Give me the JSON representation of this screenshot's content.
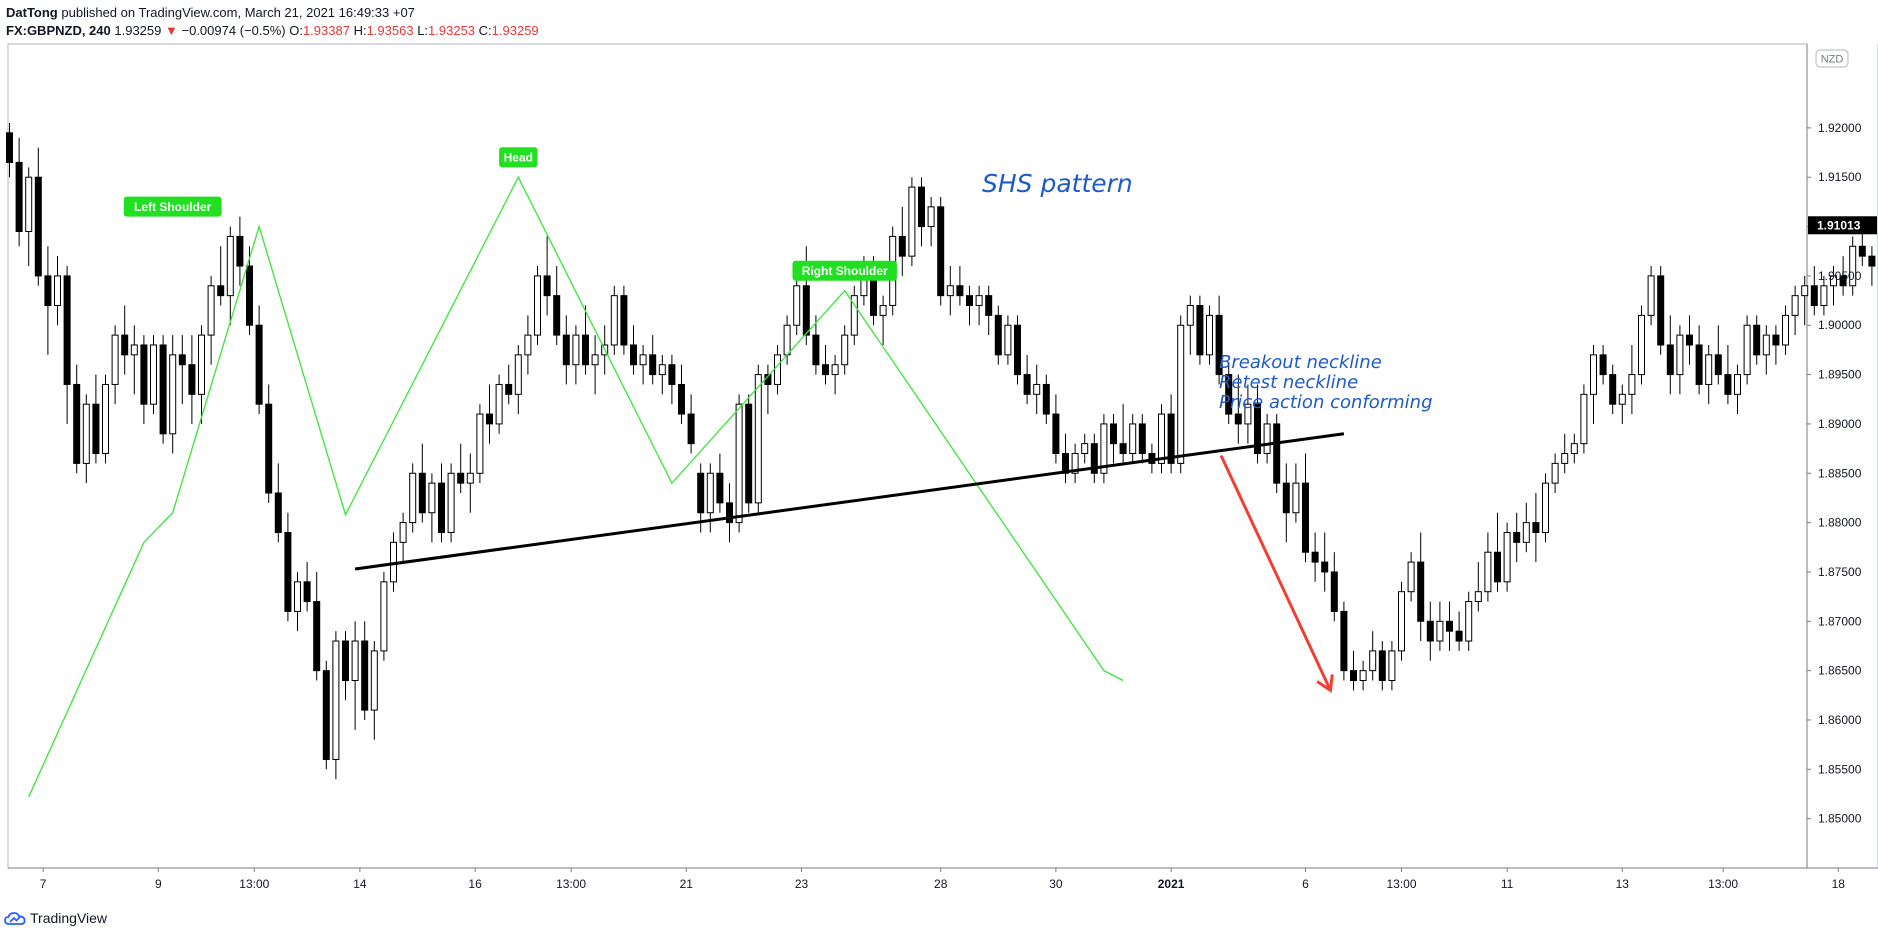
{
  "header": {
    "author": "DatTong",
    "published_text": "published on TradingView.com, March 21, 2021 16:49:33 +07",
    "symbol": "FX:GBPNZD, 240",
    "last_price": "1.93259",
    "change_arrow": "▼",
    "change": "−0.00974 (−0.5%)",
    "o_label": "O:",
    "o_value": "1.93387",
    "h_label": "H:",
    "h_value": "1.93563",
    "l_label": "L:",
    "l_value": "1.93253",
    "c_label": "C:",
    "c_value": "1.93259"
  },
  "colors": {
    "candle_up": "#ffffff",
    "candle_down": "#000000",
    "zigzag": "#39e639",
    "neckline": "#000000",
    "arrow": "#f23f36",
    "label_bg": "#21e021",
    "note_text": "#1e5bc6",
    "price_tag": "#000000"
  },
  "footer": {
    "logo_icon": "tradingview-cloud-icon",
    "label": "TradingView"
  },
  "chart_data": {
    "type": "candlestick",
    "currency_label": "NZD",
    "current_price_tag": "1.91013",
    "ylim": [
      1.845,
      1.9285
    ],
    "y_ticks": [
      "1.85000",
      "1.85500",
      "1.86000",
      "1.86500",
      "1.87000",
      "1.87500",
      "1.88000",
      "1.88500",
      "1.89000",
      "1.89500",
      "1.90000",
      "1.90500",
      "1.91000",
      "1.91500",
      "1.92000"
    ],
    "x_ticks": [
      {
        "label": "7",
        "bar": 3.5
      },
      {
        "label": "9",
        "bar": 15.5
      },
      {
        "label": "13:00",
        "bar": 25.5
      },
      {
        "label": "14",
        "bar": 36.5
      },
      {
        "label": "16",
        "bar": 48.5
      },
      {
        "label": "13:00",
        "bar": 58.5
      },
      {
        "label": "21",
        "bar": 70.5
      },
      {
        "label": "23",
        "bar": 82.5
      },
      {
        "label": "28",
        "bar": 97
      },
      {
        "label": "30",
        "bar": 109
      },
      {
        "label": "2021",
        "bar": 121,
        "bold": true
      },
      {
        "label": "6",
        "bar": 135
      },
      {
        "label": "13:00",
        "bar": 145
      },
      {
        "label": "11",
        "bar": 156
      },
      {
        "label": "13",
        "bar": 168
      },
      {
        "label": "13:00",
        "bar": 178.5
      },
      {
        "label": "18",
        "bar": 190.5
      }
    ],
    "candles": [
      [
        1.9195,
        1.9205,
        1.915,
        1.9165
      ],
      [
        1.9165,
        1.919,
        1.908,
        1.9095
      ],
      [
        1.9095,
        1.916,
        1.906,
        1.915
      ],
      [
        1.915,
        1.918,
        1.904,
        1.905
      ],
      [
        1.905,
        1.908,
        1.897,
        1.902
      ],
      [
        1.902,
        1.907,
        1.9,
        1.905
      ],
      [
        1.905,
        1.906,
        1.89,
        1.894
      ],
      [
        1.894,
        1.896,
        1.885,
        1.886
      ],
      [
        1.886,
        1.893,
        1.884,
        1.892
      ],
      [
        1.892,
        1.895,
        1.886,
        1.887
      ],
      [
        1.887,
        1.895,
        1.886,
        1.894
      ],
      [
        1.894,
        1.9,
        1.892,
        1.899
      ],
      [
        1.899,
        1.902,
        1.895,
        1.897
      ],
      [
        1.897,
        1.9,
        1.893,
        1.898
      ],
      [
        1.898,
        1.899,
        1.89,
        1.892
      ],
      [
        1.892,
        1.899,
        1.891,
        1.898
      ],
      [
        1.898,
        1.899,
        1.888,
        1.889
      ],
      [
        1.889,
        1.899,
        1.887,
        1.897
      ],
      [
        1.897,
        1.899,
        1.892,
        1.896
      ],
      [
        1.896,
        1.899,
        1.89,
        1.893
      ],
      [
        1.893,
        1.9,
        1.89,
        1.899
      ],
      [
        1.899,
        1.905,
        1.896,
        1.904
      ],
      [
        1.904,
        1.908,
        1.902,
        1.903
      ],
      [
        1.903,
        1.91,
        1.9,
        1.909
      ],
      [
        1.909,
        1.911,
        1.904,
        1.906
      ],
      [
        1.906,
        1.908,
        1.899,
        1.9
      ],
      [
        1.9,
        1.902,
        1.891,
        1.892
      ],
      [
        1.892,
        1.894,
        1.882,
        1.883
      ],
      [
        1.883,
        1.886,
        1.878,
        1.879
      ],
      [
        1.879,
        1.881,
        1.87,
        1.871
      ],
      [
        1.871,
        1.875,
        1.869,
        1.874
      ],
      [
        1.874,
        1.876,
        1.871,
        1.872
      ],
      [
        1.872,
        1.875,
        1.864,
        1.865
      ],
      [
        1.865,
        1.866,
        1.855,
        1.856
      ],
      [
        1.856,
        1.869,
        1.854,
        1.868
      ],
      [
        1.868,
        1.869,
        1.862,
        1.864
      ],
      [
        1.864,
        1.87,
        1.859,
        1.868
      ],
      [
        1.868,
        1.87,
        1.86,
        1.861
      ],
      [
        1.861,
        1.868,
        1.858,
        1.867
      ],
      [
        1.867,
        1.875,
        1.866,
        1.874
      ],
      [
        1.874,
        1.879,
        1.873,
        1.878
      ],
      [
        1.878,
        1.881,
        1.876,
        1.88
      ],
      [
        1.88,
        1.886,
        1.879,
        1.885
      ],
      [
        1.885,
        1.888,
        1.88,
        1.881
      ],
      [
        1.881,
        1.885,
        1.878,
        1.884
      ],
      [
        1.884,
        1.886,
        1.878,
        1.879
      ],
      [
        1.879,
        1.886,
        1.878,
        1.885
      ],
      [
        1.885,
        1.888,
        1.883,
        1.884
      ],
      [
        1.884,
        1.887,
        1.881,
        1.885
      ],
      [
        1.885,
        1.892,
        1.884,
        1.891
      ],
      [
        1.891,
        1.894,
        1.888,
        1.89
      ],
      [
        1.89,
        1.895,
        1.889,
        1.894
      ],
      [
        1.894,
        1.896,
        1.892,
        1.893
      ],
      [
        1.893,
        1.898,
        1.891,
        1.897
      ],
      [
        1.897,
        1.901,
        1.895,
        1.899
      ],
      [
        1.899,
        1.906,
        1.898,
        1.905
      ],
      [
        1.905,
        1.909,
        1.901,
        1.903
      ],
      [
        1.903,
        1.906,
        1.898,
        1.899
      ],
      [
        1.899,
        1.901,
        1.894,
        1.896
      ],
      [
        1.896,
        1.9,
        1.894,
        1.899
      ],
      [
        1.899,
        1.902,
        1.895,
        1.896
      ],
      [
        1.896,
        1.899,
        1.893,
        1.897
      ],
      [
        1.897,
        1.9,
        1.895,
        1.898
      ],
      [
        1.898,
        1.904,
        1.897,
        1.903
      ],
      [
        1.903,
        1.904,
        1.897,
        1.898
      ],
      [
        1.898,
        1.9,
        1.895,
        1.896
      ],
      [
        1.896,
        1.898,
        1.894,
        1.897
      ],
      [
        1.897,
        1.899,
        1.894,
        1.895
      ],
      [
        1.895,
        1.897,
        1.893,
        1.896
      ],
      [
        1.896,
        1.897,
        1.892,
        1.894
      ],
      [
        1.894,
        1.896,
        1.89,
        1.891
      ],
      [
        1.891,
        1.893,
        1.887,
        1.888
      ],
      [
        1.885,
        1.886,
        1.879,
        1.881
      ],
      [
        1.881,
        1.886,
        1.879,
        1.885
      ],
      [
        1.885,
        1.887,
        1.881,
        1.882
      ],
      [
        1.882,
        1.884,
        1.878,
        1.88
      ],
      [
        1.88,
        1.893,
        1.879,
        1.892
      ],
      [
        1.892,
        1.893,
        1.881,
        1.882
      ],
      [
        1.882,
        1.896,
        1.881,
        1.895
      ],
      [
        1.895,
        1.896,
        1.891,
        1.894
      ],
      [
        1.894,
        1.898,
        1.893,
        1.897
      ],
      [
        1.897,
        1.901,
        1.896,
        1.9
      ],
      [
        1.9,
        1.905,
        1.899,
        1.904
      ],
      [
        1.904,
        1.908,
        1.898,
        1.899
      ],
      [
        1.899,
        1.901,
        1.895,
        1.896
      ],
      [
        1.896,
        1.898,
        1.894,
        1.895
      ],
      [
        1.895,
        1.897,
        1.893,
        1.896
      ],
      [
        1.896,
        1.9,
        1.895,
        1.899
      ],
      [
        1.899,
        1.904,
        1.898,
        1.903
      ],
      [
        1.903,
        1.907,
        1.902,
        1.906
      ],
      [
        1.906,
        1.907,
        1.9,
        1.901
      ],
      [
        1.901,
        1.903,
        1.898,
        1.902
      ],
      [
        1.902,
        1.91,
        1.901,
        1.909
      ],
      [
        1.909,
        1.912,
        1.905,
        1.907
      ],
      [
        1.907,
        1.915,
        1.906,
        1.914
      ],
      [
        1.914,
        1.915,
        1.908,
        1.91
      ],
      [
        1.91,
        1.913,
        1.908,
        1.912
      ],
      [
        1.912,
        1.913,
        1.902,
        1.903
      ],
      [
        1.903,
        1.906,
        1.901,
        1.904
      ],
      [
        1.904,
        1.906,
        1.902,
        1.903
      ],
      [
        1.903,
        1.904,
        1.9,
        1.902
      ],
      [
        1.902,
        1.904,
        1.9,
        1.903
      ],
      [
        1.903,
        1.904,
        1.899,
        1.901
      ],
      [
        1.901,
        1.902,
        1.896,
        1.897
      ],
      [
        1.897,
        1.901,
        1.896,
        1.9
      ],
      [
        1.9,
        1.901,
        1.894,
        1.895
      ],
      [
        1.895,
        1.897,
        1.892,
        1.893
      ],
      [
        1.893,
        1.896,
        1.891,
        1.894
      ],
      [
        1.894,
        1.895,
        1.89,
        1.891
      ],
      [
        1.891,
        1.893,
        1.886,
        1.887
      ],
      [
        1.887,
        1.889,
        1.884,
        1.885
      ],
      [
        1.885,
        1.888,
        1.884,
        1.887
      ],
      [
        1.887,
        1.889,
        1.886,
        1.888
      ],
      [
        1.888,
        1.889,
        1.884,
        1.885
      ],
      [
        1.885,
        1.891,
        1.884,
        1.89
      ],
      [
        1.89,
        1.891,
        1.886,
        1.888
      ],
      [
        1.888,
        1.892,
        1.886,
        1.887
      ],
      [
        1.887,
        1.891,
        1.886,
        1.89
      ],
      [
        1.89,
        1.891,
        1.886,
        1.887
      ],
      [
        1.887,
        1.888,
        1.885,
        1.886
      ],
      [
        1.886,
        1.892,
        1.885,
        1.891
      ],
      [
        1.891,
        1.893,
        1.885,
        1.886
      ],
      [
        1.886,
        1.901,
        1.885,
        1.9
      ],
      [
        1.9,
        1.903,
        1.897,
        1.902
      ],
      [
        1.902,
        1.903,
        1.896,
        1.897
      ],
      [
        1.897,
        1.902,
        1.896,
        1.901
      ],
      [
        1.901,
        1.903,
        1.894,
        1.895
      ],
      [
        1.895,
        1.896,
        1.89,
        1.891
      ],
      [
        1.891,
        1.895,
        1.888,
        1.89
      ],
      [
        1.89,
        1.894,
        1.888,
        1.892
      ],
      [
        1.892,
        1.894,
        1.886,
        1.887
      ],
      [
        1.887,
        1.891,
        1.886,
        1.89
      ],
      [
        1.89,
        1.891,
        1.883,
        1.884
      ],
      [
        1.884,
        1.886,
        1.878,
        1.881
      ],
      [
        1.881,
        1.886,
        1.88,
        1.884
      ],
      [
        1.884,
        1.887,
        1.876,
        1.877
      ],
      [
        1.877,
        1.879,
        1.874,
        1.876
      ],
      [
        1.876,
        1.879,
        1.873,
        1.875
      ],
      [
        1.875,
        1.877,
        1.87,
        1.871
      ],
      [
        1.871,
        1.872,
        1.864,
        1.865
      ],
      [
        1.865,
        1.867,
        1.863,
        1.864
      ],
      [
        1.864,
        1.866,
        1.863,
        1.865
      ],
      [
        1.865,
        1.869,
        1.864,
        1.867
      ],
      [
        1.867,
        1.868,
        1.863,
        1.864
      ],
      [
        1.864,
        1.868,
        1.863,
        1.867
      ],
      [
        1.867,
        1.874,
        1.866,
        1.873
      ],
      [
        1.873,
        1.877,
        1.872,
        1.876
      ],
      [
        1.876,
        1.879,
        1.868,
        1.87
      ],
      [
        1.87,
        1.872,
        1.866,
        1.868
      ],
      [
        1.868,
        1.872,
        1.867,
        1.87
      ],
      [
        1.87,
        1.872,
        1.867,
        1.869
      ],
      [
        1.869,
        1.871,
        1.867,
        1.868
      ],
      [
        1.868,
        1.873,
        1.867,
        1.872
      ],
      [
        1.872,
        1.876,
        1.871,
        1.873
      ],
      [
        1.873,
        1.879,
        1.872,
        1.877
      ],
      [
        1.877,
        1.881,
        1.873,
        1.874
      ],
      [
        1.874,
        1.88,
        1.873,
        1.879
      ],
      [
        1.879,
        1.881,
        1.876,
        1.878
      ],
      [
        1.878,
        1.882,
        1.877,
        1.88
      ],
      [
        1.88,
        1.883,
        1.876,
        1.879
      ],
      [
        1.879,
        1.885,
        1.878,
        1.884
      ],
      [
        1.884,
        1.887,
        1.883,
        1.886
      ],
      [
        1.886,
        1.889,
        1.885,
        1.887
      ],
      [
        1.887,
        1.889,
        1.886,
        1.888
      ],
      [
        1.888,
        1.894,
        1.887,
        1.893
      ],
      [
        1.893,
        1.898,
        1.89,
        1.897
      ],
      [
        1.897,
        1.898,
        1.894,
        1.895
      ],
      [
        1.895,
        1.896,
        1.891,
        1.892
      ],
      [
        1.892,
        1.894,
        1.89,
        1.893
      ],
      [
        1.893,
        1.898,
        1.891,
        1.895
      ],
      [
        1.895,
        1.902,
        1.894,
        1.901
      ],
      [
        1.901,
        1.906,
        1.9,
        1.905
      ],
      [
        1.905,
        1.906,
        1.897,
        1.898
      ],
      [
        1.898,
        1.901,
        1.893,
        1.895
      ],
      [
        1.895,
        1.9,
        1.893,
        1.899
      ],
      [
        1.899,
        1.901,
        1.896,
        1.898
      ],
      [
        1.898,
        1.9,
        1.893,
        1.894
      ],
      [
        1.894,
        1.898,
        1.892,
        1.897
      ],
      [
        1.897,
        1.9,
        1.894,
        1.895
      ],
      [
        1.895,
        1.898,
        1.892,
        1.893
      ],
      [
        1.893,
        1.896,
        1.891,
        1.895
      ],
      [
        1.895,
        1.901,
        1.894,
        1.9
      ],
      [
        1.9,
        1.901,
        1.896,
        1.897
      ],
      [
        1.897,
        1.9,
        1.895,
        1.899
      ],
      [
        1.899,
        1.9,
        1.896,
        1.898
      ],
      [
        1.898,
        1.902,
        1.897,
        1.901
      ],
      [
        1.901,
        1.904,
        1.899,
        1.903
      ],
      [
        1.903,
        1.905,
        1.9,
        1.904
      ],
      [
        1.904,
        1.906,
        1.901,
        1.902
      ],
      [
        1.902,
        1.905,
        1.901,
        1.904
      ],
      [
        1.904,
        1.906,
        1.902,
        1.905
      ],
      [
        1.905,
        1.907,
        1.903,
        1.904
      ],
      [
        1.904,
        1.909,
        1.903,
        1.908
      ],
      [
        1.908,
        1.91,
        1.906,
        1.907
      ],
      [
        1.907,
        1.908,
        1.904,
        1.906
      ],
      [
        1.906,
        1.907,
        1.904,
        1.905
      ],
      [
        1.905,
        1.908,
        1.903,
        1.907
      ],
      [
        1.907,
        1.912,
        1.906,
        1.91
      ],
      [
        1.91,
        1.913,
        1.908,
        1.912
      ]
    ],
    "zigzag": [
      [
        1.8522,
        2.0
      ],
      [
        1.878,
        14.0
      ],
      [
        1.881,
        17.0
      ],
      [
        1.91,
        26.0
      ],
      [
        1.8808,
        35.0
      ],
      [
        1.915,
        53.0
      ],
      [
        1.884,
        69.0
      ],
      [
        1.9035,
        87.0
      ],
      [
        1.865,
        114.0
      ],
      [
        1.864,
        116.0
      ]
    ],
    "neckline": {
      "from": {
        "bar": 36.0,
        "price": 1.8753
      },
      "to": {
        "bar": 139.0,
        "price": 1.889
      }
    },
    "arrow": {
      "from": {
        "bar": 126.2,
        "price": 1.8868
      },
      "to": {
        "bar": 137.6,
        "price": 1.863
      }
    },
    "labels": [
      {
        "text": "Left Shoulder",
        "bar": 17.0,
        "price": 1.91
      },
      {
        "text": "Head",
        "bar": 53.0,
        "price": 1.915
      },
      {
        "text": "Right Shoulder",
        "bar": 87.0,
        "price": 1.9035
      }
    ],
    "annotations": {
      "title": "SHS pattern",
      "notes": [
        "Breakout neckline",
        "Retest neckline",
        "Price action conforming"
      ]
    }
  }
}
